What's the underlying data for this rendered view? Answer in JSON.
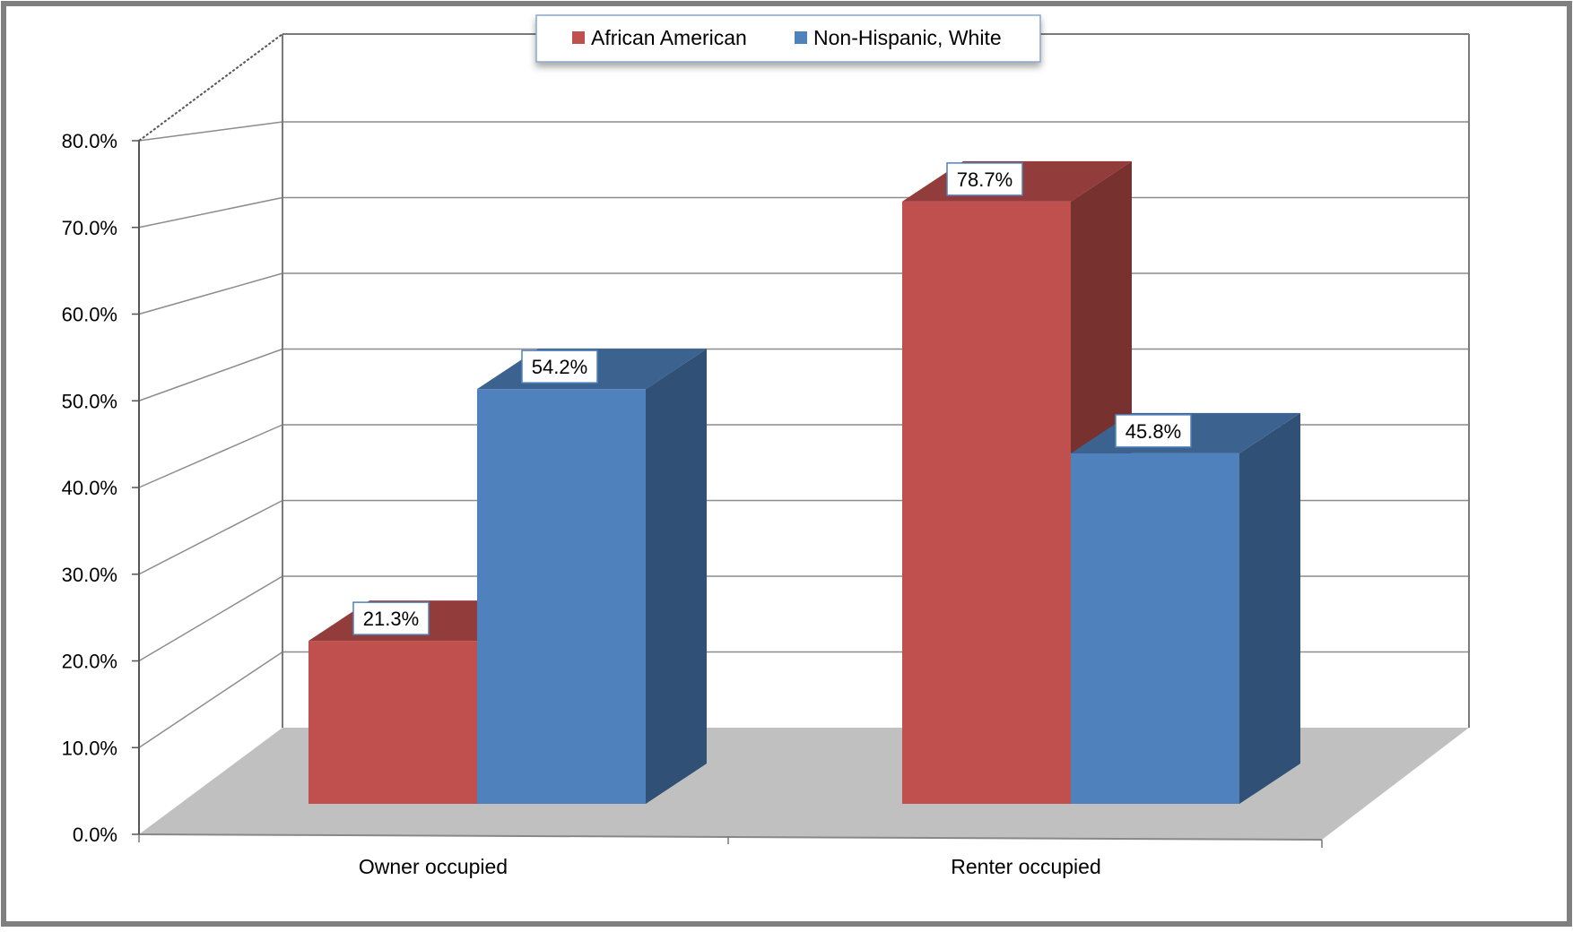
{
  "chart_data": {
    "type": "bar",
    "categories": [
      "Owner occupied",
      "Renter occupied"
    ],
    "series": [
      {
        "name": "African American",
        "values": [
          21.3,
          78.7
        ],
        "labels": [
          "21.3%",
          "78.7%"
        ]
      },
      {
        "name": "Non-Hispanic, White",
        "values": [
          54.2,
          45.8
        ],
        "labels": [
          "54.2%",
          "45.8%"
        ]
      }
    ],
    "y_tick_labels": [
      "0.0%",
      "10.0%",
      "20.0%",
      "30.0%",
      "40.0%",
      "50.0%",
      "60.0%",
      "70.0%",
      "80.0%"
    ],
    "ylim": [
      0,
      80
    ],
    "grid": true,
    "legend_position": "top-center",
    "colors": {
      "series": [
        "#c0504d",
        "#4f81bd"
      ],
      "floor": "#c0c0c0",
      "frame_border": "#7f7f7f"
    }
  }
}
